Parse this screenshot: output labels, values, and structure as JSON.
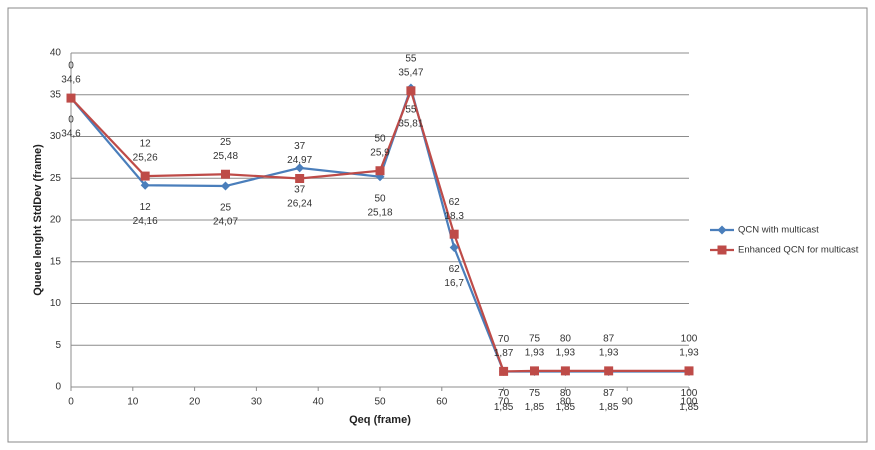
{
  "chart_data": {
    "type": "line",
    "x_label": "Qeq (frame)",
    "y_label": "Queue lenght StdDev (frame)",
    "xlim": [
      0,
      100
    ],
    "xticks": [
      0,
      10,
      20,
      30,
      40,
      50,
      60,
      70,
      80,
      90,
      100
    ],
    "ylim": [
      0,
      40
    ],
    "yticks": [
      0,
      5,
      10,
      15,
      20,
      25,
      30,
      35,
      40
    ],
    "grid": true,
    "legend": "right",
    "series": [
      {
        "name": "QCN with multicast",
        "color": "#4a7ebb",
        "marker": "diamond",
        "x": [
          0,
          12,
          25,
          37,
          50,
          55,
          62,
          70,
          75,
          80,
          87,
          100
        ],
        "values": [
          34.6,
          24.16,
          24.07,
          26.24,
          25.18,
          35.81,
          16.7,
          1.85,
          1.85,
          1.85,
          1.85,
          1.85
        ],
        "value_labels": [
          "34,6",
          "24,16",
          "24,07",
          "26,24",
          "25,18",
          "35,81",
          "16,7",
          "1,85",
          "1,85",
          "1,85",
          "1,85",
          "1,85"
        ]
      },
      {
        "name": "Enhanced QCN for multicast",
        "color": "#be4b48",
        "marker": "square",
        "x": [
          0,
          12,
          25,
          37,
          50,
          55,
          62,
          70,
          75,
          80,
          87,
          100
        ],
        "values": [
          34.6,
          25.26,
          25.48,
          24.97,
          25.9,
          35.47,
          18.3,
          1.87,
          1.93,
          1.93,
          1.93,
          1.93
        ],
        "value_labels": [
          "34,6",
          "25,26",
          "25,48",
          "24,97",
          "25,9",
          "35,47",
          "18,3",
          "1,87",
          "1,93",
          "1,93",
          "1,93",
          "1,93"
        ]
      }
    ]
  }
}
